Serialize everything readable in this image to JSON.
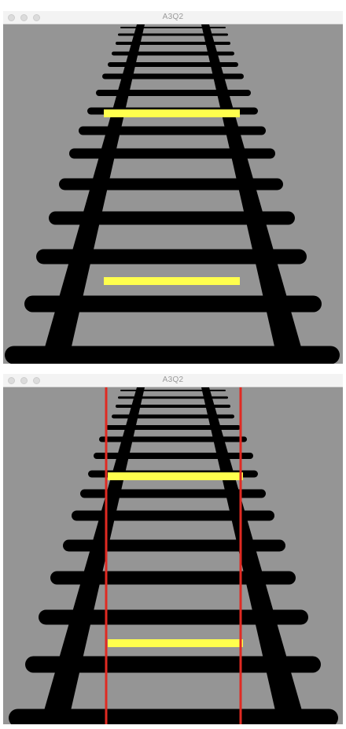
{
  "windows": [
    {
      "title": "A3Q2",
      "show_vertical_guides": false
    },
    {
      "title": "A3Q2",
      "show_vertical_guides": true
    }
  ],
  "colors": {
    "background": "#959595",
    "track": "#000000",
    "highlight": "#ffff4d",
    "guide": "#e02a22"
  }
}
